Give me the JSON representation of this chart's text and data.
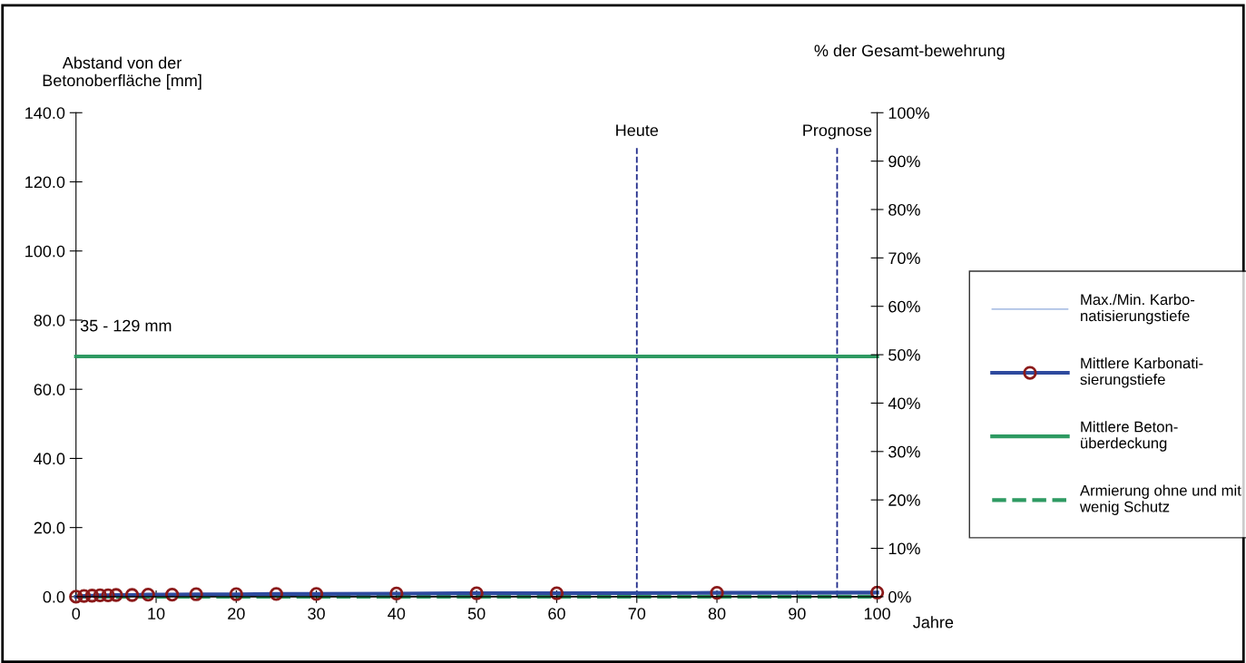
{
  "chart_data": {
    "type": "line",
    "ylabel": "Abstand von der\nBetonoberfläche [mm]",
    "y2label": "% der Gesamt-bewehrung",
    "xlabel": "Jahre",
    "xlim": [
      0,
      100
    ],
    "xticks": [
      0,
      10,
      20,
      30,
      40,
      50,
      60,
      70,
      80,
      90,
      100
    ],
    "ylim": [
      0,
      140
    ],
    "yticks": [
      {
        "value": 0,
        "label": "0.0"
      },
      {
        "value": 20,
        "label": "20.0"
      },
      {
        "value": 40,
        "label": "40.0"
      },
      {
        "value": 60,
        "label": "60.0"
      },
      {
        "value": 80,
        "label": "80.0"
      },
      {
        "value": 100,
        "label": "100.0"
      },
      {
        "value": 120,
        "label": "120.0"
      },
      {
        "value": 140,
        "label": "140.0"
      }
    ],
    "y2lim": [
      0,
      100
    ],
    "y2ticks": [
      {
        "value": 0,
        "label": "0%"
      },
      {
        "value": 10,
        "label": "10%"
      },
      {
        "value": 20,
        "label": "20%"
      },
      {
        "value": 30,
        "label": "30%"
      },
      {
        "value": 40,
        "label": "40%"
      },
      {
        "value": 50,
        "label": "50%"
      },
      {
        "value": 60,
        "label": "60%"
      },
      {
        "value": 70,
        "label": "70%"
      },
      {
        "value": 80,
        "label": "80%"
      },
      {
        "value": 90,
        "label": "90%"
      },
      {
        "value": 100,
        "label": "100%"
      }
    ],
    "series": [
      {
        "name": "Max./Min. Karbo-\nnatisierungstiefe",
        "color": "#8ea9db",
        "line_style": "solid",
        "values": [
          null
        ]
      },
      {
        "name": "Mittlere Karbonati-\nsierungstiefe",
        "color": "#2e4a9e",
        "line_style": "solid",
        "marker": "circle",
        "x": [
          0,
          1,
          2,
          3,
          4,
          5,
          7,
          9,
          12,
          15,
          20,
          25,
          30,
          40,
          50,
          60,
          80,
          100
        ],
        "values": [
          0,
          0.2,
          0.3,
          0.4,
          0.4,
          0.5,
          0.5,
          0.6,
          0.6,
          0.7,
          0.7,
          0.8,
          0.8,
          0.9,
          1.0,
          1.0,
          1.1,
          1.2
        ]
      },
      {
        "name": "Mittlere Beton-\nüberdeckung",
        "color": "#2e9a62",
        "line_style": "solid",
        "x": [
          0,
          100
        ],
        "values": [
          69.5,
          69.5
        ]
      },
      {
        "name": "Armierung ohne und mit\nwenig Schutz",
        "color": "#2e9a62",
        "line_style": "dashed",
        "x": [
          0,
          100
        ],
        "values": [
          0,
          0
        ]
      }
    ],
    "ref_lines": [
      {
        "axis": "x",
        "value": 70,
        "label": "Heute",
        "color": "#1f2a8a",
        "line_style": "dashed"
      },
      {
        "axis": "x",
        "value": 95,
        "label": "Prognose",
        "color": "#1f2a8a",
        "line_style": "dashed"
      }
    ],
    "annotations": [
      "35 - 129 mm"
    ],
    "legend": "right",
    "grid": false
  }
}
